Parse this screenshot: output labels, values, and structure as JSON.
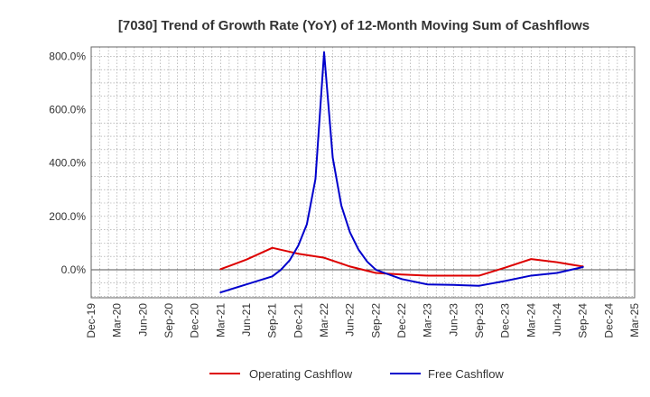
{
  "chart_data": {
    "type": "line",
    "title": "[7030]  Trend of Growth Rate (YoY) of 12-Month Moving Sum of Cashflows",
    "xlabel": "",
    "ylabel": "",
    "x_ticks": [
      "Dec-19",
      "Mar-20",
      "Jun-20",
      "Sep-20",
      "Dec-20",
      "Mar-21",
      "Jun-21",
      "Sep-21",
      "Dec-21",
      "Mar-22",
      "Jun-22",
      "Sep-22",
      "Dec-22",
      "Mar-23",
      "Jun-23",
      "Sep-23",
      "Dec-23",
      "Mar-24",
      "Jun-24",
      "Sep-24",
      "Dec-24",
      "Mar-25"
    ],
    "y_ticks": [
      {
        "value": 0,
        "label": "0.0%"
      },
      {
        "value": 200,
        "label": "200.0%"
      },
      {
        "value": 400,
        "label": "400.0%"
      },
      {
        "value": 600,
        "label": "600.0%"
      },
      {
        "value": 800,
        "label": "800.0%"
      }
    ],
    "ylim": [
      -105,
      835
    ],
    "grid": true,
    "legend_position": "bottom",
    "series": [
      {
        "name": "Operating Cashflow",
        "color": "#dd0000",
        "points": [
          [
            "Mar-21",
            2
          ],
          [
            "Jun-21",
            38
          ],
          [
            "Sep-21",
            82
          ],
          [
            "Dec-21",
            60
          ],
          [
            "Mar-22",
            45
          ],
          [
            "Jun-22",
            12
          ],
          [
            "Sep-22",
            -12
          ],
          [
            "Dec-22",
            -18
          ],
          [
            "Mar-23",
            -22
          ],
          [
            "Jun-23",
            -22
          ],
          [
            "Sep-23",
            -22
          ],
          [
            "Dec-23",
            8
          ],
          [
            "Mar-24",
            40
          ],
          [
            "Jun-24",
            28
          ],
          [
            "Sep-24",
            12
          ]
        ]
      },
      {
        "name": "Free Cashflow",
        "color": "#0000cc",
        "points": [
          [
            "Mar-21",
            -85
          ],
          [
            "Jun-21",
            -55
          ],
          [
            "Sep-21",
            -25
          ],
          [
            "Oct-21",
            0
          ],
          [
            "Nov-21",
            35
          ],
          [
            "Dec-21",
            90
          ],
          [
            "Jan-22",
            170
          ],
          [
            "Feb-22",
            340
          ],
          [
            "Mar-22",
            815
          ],
          [
            "Apr-22",
            420
          ],
          [
            "May-22",
            240
          ],
          [
            "Jun-22",
            140
          ],
          [
            "Jul-22",
            75
          ],
          [
            "Aug-22",
            30
          ],
          [
            "Sep-22",
            0
          ],
          [
            "Oct-22",
            -12
          ],
          [
            "Dec-22",
            -35
          ],
          [
            "Mar-23",
            -55
          ],
          [
            "Jun-23",
            -57
          ],
          [
            "Sep-23",
            -60
          ],
          [
            "Dec-23",
            -42
          ],
          [
            "Mar-24",
            -22
          ],
          [
            "Jun-24",
            -12
          ],
          [
            "Sep-24",
            10
          ]
        ]
      }
    ]
  }
}
